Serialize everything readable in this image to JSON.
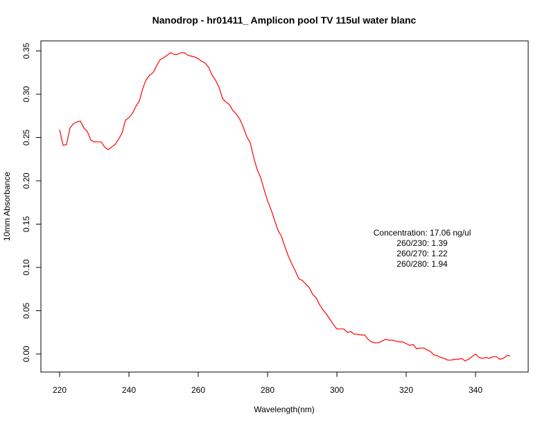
{
  "chart_data": {
    "type": "line",
    "title": "Nanodrop - hr01411_ Amplicon pool  TV 115ul water blanc",
    "xlabel": "Wavelength(nm)",
    "ylabel": "10mm Absorbance",
    "xlim": [
      220,
      350
    ],
    "ylim": [
      -0.02,
      0.355
    ],
    "x_ticks": [
      "220",
      "240",
      "260",
      "280",
      "300",
      "320",
      "340"
    ],
    "y_ticks": [
      "0.00",
      "0.05",
      "0.10",
      "0.15",
      "0.20",
      "0.25",
      "0.30",
      "0.35"
    ],
    "grid": false,
    "line_color": "#ff0000",
    "annotations": [
      "Concentration: 17.06 ng/ul",
      "260/230: 1.39",
      "260/270: 1.22",
      "260/280: 1.94"
    ],
    "series": [
      {
        "x": [
          220,
          221,
          222,
          223,
          224,
          225,
          226,
          227,
          228,
          229,
          230,
          231,
          232,
          233,
          234,
          235,
          236,
          237,
          238,
          239,
          240,
          241,
          242,
          243,
          244,
          245,
          246,
          247,
          248,
          249,
          250,
          251,
          252,
          253,
          254,
          255,
          256,
          257,
          258,
          259,
          260,
          261,
          262,
          263,
          264,
          265,
          266,
          267,
          268,
          269,
          270,
          271,
          272,
          273,
          274,
          275,
          276,
          277,
          278,
          279,
          280,
          281,
          282,
          283,
          284,
          285,
          286,
          287,
          288,
          289,
          290,
          291,
          292,
          293,
          294,
          295,
          296,
          297,
          298,
          299,
          300,
          301,
          302,
          303,
          304,
          305,
          306,
          307,
          308,
          309,
          310,
          311,
          312,
          313,
          314,
          315,
          316,
          317,
          318,
          319,
          320,
          321,
          322,
          323,
          324,
          325,
          326,
          327,
          328,
          329,
          330,
          331,
          332,
          333,
          334,
          335,
          336,
          337,
          338,
          339,
          340,
          341,
          342,
          343,
          344,
          345,
          346,
          347,
          348,
          349,
          350
        ],
        "values": [
          0.259,
          0.241,
          0.242,
          0.261,
          0.266,
          0.268,
          0.269,
          0.261,
          0.257,
          0.247,
          0.245,
          0.245,
          0.245,
          0.239,
          0.236,
          0.239,
          0.242,
          0.248,
          0.255,
          0.27,
          0.273,
          0.278,
          0.286,
          0.292,
          0.307,
          0.317,
          0.322,
          0.325,
          0.333,
          0.34,
          0.342,
          0.345,
          0.348,
          0.346,
          0.346,
          0.348,
          0.348,
          0.345,
          0.344,
          0.343,
          0.341,
          0.338,
          0.336,
          0.331,
          0.322,
          0.316,
          0.308,
          0.295,
          0.291,
          0.288,
          0.281,
          0.277,
          0.271,
          0.262,
          0.251,
          0.244,
          0.227,
          0.213,
          0.204,
          0.19,
          0.177,
          0.167,
          0.155,
          0.143,
          0.136,
          0.124,
          0.113,
          0.104,
          0.096,
          0.087,
          0.085,
          0.081,
          0.077,
          0.069,
          0.065,
          0.057,
          0.051,
          0.046,
          0.04,
          0.034,
          0.029,
          0.029,
          0.029,
          0.025,
          0.026,
          0.023,
          0.023,
          0.022,
          0.022,
          0.017,
          0.014,
          0.013,
          0.013,
          0.015,
          0.017,
          0.016,
          0.016,
          0.015,
          0.014,
          0.014,
          0.012,
          0.01,
          0.011,
          0.006,
          0.007,
          0.007,
          0.005,
          0.003,
          -0.001,
          -0.002,
          -0.004,
          -0.005,
          -0.007,
          -0.007,
          -0.006,
          -0.006,
          -0.005,
          -0.008,
          -0.006,
          -0.003,
          0.0,
          -0.004,
          -0.005,
          -0.004,
          -0.005,
          -0.003,
          -0.003,
          -0.006,
          -0.005,
          -0.002,
          -0.002
        ]
      }
    ]
  }
}
